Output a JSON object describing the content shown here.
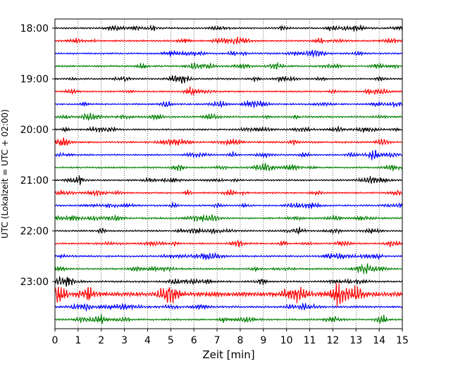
{
  "chart_data": {
    "type": "line",
    "subtype": "helicorder",
    "title": "",
    "xlabel": "Zeit  [min]",
    "ylabel": "UTC (Lokalzeit = UTC + 02:00)",
    "xlim": [
      0,
      15
    ],
    "x_ticks": [
      "0",
      "1",
      "2",
      "3",
      "4",
      "5",
      "6",
      "7",
      "8",
      "9",
      "10",
      "11",
      "12",
      "13",
      "14",
      "15"
    ],
    "y_ticks": [
      "18:00",
      "19:00",
      "20:00",
      "21:00",
      "22:00",
      "23:00"
    ],
    "grid": "vertical dotted at each minute",
    "trace_minutes": 15,
    "trace_colors": [
      "#000000",
      "#ff0000",
      "#0000ff",
      "#008000"
    ],
    "traces": [
      {
        "start": "18:00",
        "amplitude": 1.0
      },
      {
        "start": "18:15",
        "amplitude": 1.0
      },
      {
        "start": "18:30",
        "amplitude": 1.0
      },
      {
        "start": "18:45",
        "amplitude": 1.1
      },
      {
        "start": "19:00",
        "amplitude": 1.0
      },
      {
        "start": "19:15",
        "amplitude": 1.0
      },
      {
        "start": "19:30",
        "amplitude": 1.0
      },
      {
        "start": "19:45",
        "amplitude": 1.1
      },
      {
        "start": "20:00",
        "amplitude": 1.0
      },
      {
        "start": "20:15",
        "amplitude": 1.1
      },
      {
        "start": "20:30",
        "amplitude": 1.0
      },
      {
        "start": "20:45",
        "amplitude": 1.0
      },
      {
        "start": "21:00",
        "amplitude": 1.0
      },
      {
        "start": "21:15",
        "amplitude": 1.0
      },
      {
        "start": "21:30",
        "amplitude": 1.0
      },
      {
        "start": "21:45",
        "amplitude": 1.1
      },
      {
        "start": "22:00",
        "amplitude": 1.0
      },
      {
        "start": "22:15",
        "amplitude": 1.0
      },
      {
        "start": "22:30",
        "amplitude": 1.1
      },
      {
        "start": "22:45",
        "amplitude": 1.1
      },
      {
        "start": "23:00",
        "amplitude": 1.1
      },
      {
        "start": "23:15",
        "amplitude": 3.0
      },
      {
        "start": "23:30",
        "amplitude": 1.2
      },
      {
        "start": "23:45",
        "amplitude": 1.1
      }
    ]
  }
}
